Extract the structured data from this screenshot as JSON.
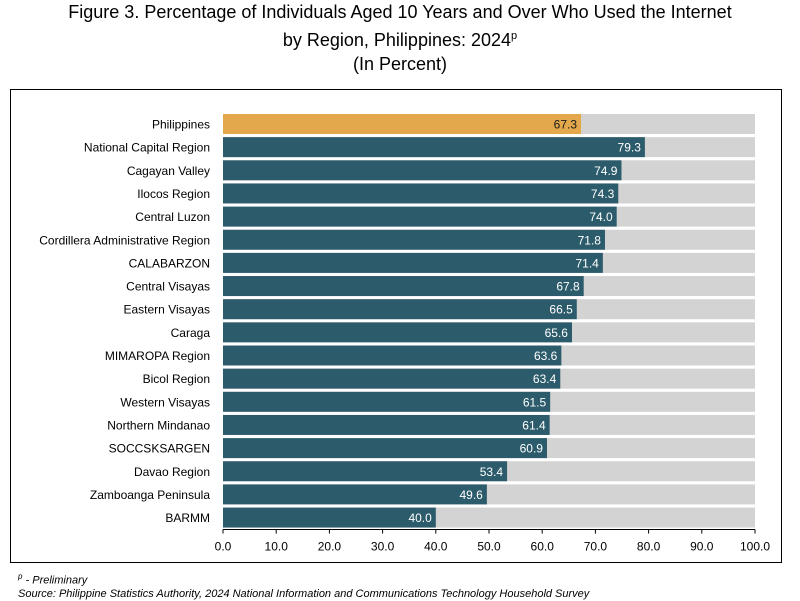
{
  "title": {
    "line1": "Figure 3. Percentage of Individuals Aged 10 Years and Over Who Used the Internet",
    "line2": "by Region, Philippines: 2024",
    "line2_superscript": "p",
    "line3": "(In Percent)"
  },
  "footnotes": {
    "preliminary_marker": "p",
    "preliminary": " - Preliminary",
    "source": "Source: Philippine Statistics Authority, 2024 National Information and Communications Technology Household Survey"
  },
  "colors": {
    "highlight": "#E2A84B",
    "bar": "#2C5B6B",
    "background_bar": "#D3D3D3"
  },
  "chart_data": {
    "type": "bar",
    "orientation": "horizontal",
    "title": "Percentage of Individuals Aged 10 Years and Over Who Used the Internet by Region, Philippines: 2024",
    "xlabel": "",
    "ylabel": "",
    "xlim": [
      0,
      100
    ],
    "xticks": [
      "0.0",
      "10.0",
      "20.0",
      "30.0",
      "40.0",
      "50.0",
      "60.0",
      "70.0",
      "80.0",
      "90.0",
      "100.0"
    ],
    "grid": false,
    "legend": "none",
    "categories": [
      "Philippines",
      "National Capital Region",
      "Cagayan Valley",
      "Ilocos Region",
      "Central Luzon",
      "Cordillera Administrative Region",
      "CALABARZON",
      "Central Visayas",
      "Eastern Visayas",
      "Caraga",
      "MIMAROPA Region",
      "Bicol Region",
      "Western Visayas",
      "Northern Mindanao",
      "SOCCSKSARGEN",
      "Davao Region",
      "Zamboanga Peninsula",
      "BARMM"
    ],
    "values": [
      67.3,
      79.3,
      74.9,
      74.3,
      74.0,
      71.8,
      71.4,
      67.8,
      66.5,
      65.6,
      63.6,
      63.4,
      61.5,
      61.4,
      60.9,
      53.4,
      49.6,
      40.0
    ],
    "labels": [
      "67.3",
      "79.3",
      "74.9",
      "74.3",
      "74.0",
      "71.8",
      "71.4",
      "67.8",
      "66.5",
      "65.6",
      "63.6",
      "63.4",
      "61.5",
      "61.4",
      "60.9",
      "53.4",
      "49.6",
      "40.0"
    ],
    "highlight_category": "Philippines"
  }
}
